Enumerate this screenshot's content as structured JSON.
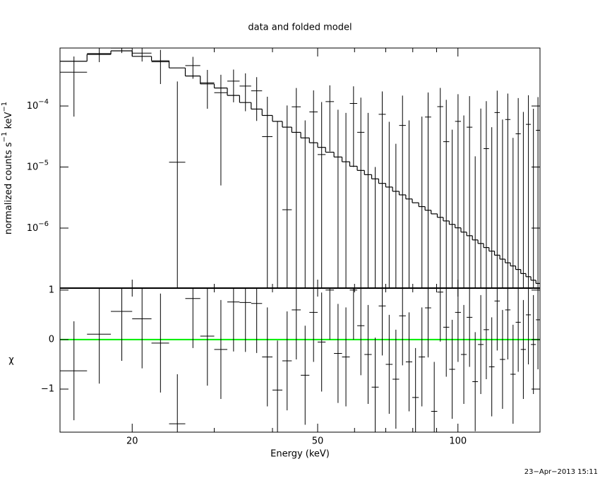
{
  "chart_data": {
    "type": "spectrum",
    "title": "data and folded model",
    "xlabel": "Energy (keV)",
    "timestamp": "23−Apr−2013 15:11",
    "log_x": true,
    "xlim": [
      14,
      150
    ],
    "xticks": [
      20,
      50,
      100
    ],
    "xminor": [
      30,
      40,
      60,
      70,
      80,
      90
    ],
    "bins": [
      14,
      16,
      18,
      20,
      22,
      24,
      26,
      28,
      30,
      32,
      34,
      36,
      38,
      40,
      42,
      44,
      46,
      48,
      50,
      52,
      54.2,
      56.4,
      58.6,
      60.8,
      63,
      65.3,
      67.6,
      70,
      72.4,
      74.8,
      77.3,
      79.8,
      82.4,
      85,
      87.6,
      90.3,
      93,
      95.8,
      98.6,
      101.5,
      104.4,
      107.4,
      110.4,
      113.5,
      116.6,
      119.8,
      123,
      126.3,
      129.6,
      133,
      136.4,
      139.9,
      143.4,
      147,
      150
    ],
    "top_ylabel": [
      {
        "text": "normalized counts s"
      },
      {
        "sup": "−1"
      },
      {
        "text": " keV"
      },
      {
        "sup": "−1"
      }
    ],
    "top_log_y": true,
    "top_ylim": [
      1.04e-07,
      0.00089
    ],
    "top_yticks": [
      {
        "value": 0.0001,
        "label": "10",
        "sup": "−4"
      },
      {
        "value": 1e-05,
        "label": "10",
        "sup": "−5"
      },
      {
        "value": 1e-06,
        "label": "10",
        "sup": "−6"
      }
    ],
    "data_color": "#000000",
    "data_values": [
      0.000357,
      0.000722,
      0.000886,
      0.000734,
      0.000529,
      1.2e-05,
      0.000459,
      0.00024,
      0.000165,
      0.000255,
      0.000212,
      0.000177,
      3.15e-05,
      -4.4e-05,
      2e-06,
      9.7e-05,
      -4.2e-05,
      8e-05,
      1.6e-05,
      0.000118,
      -1.3e-05,
      -2.3e-05,
      0.00011,
      3.7e-05,
      -2.3e-05,
      -9e-05,
      7.3e-05,
      -4.5e-05,
      -7.6e-05,
      4.8e-05,
      -4.2e-05,
      -0.000114,
      -3.3e-05,
      6.6e-05,
      -0.000143,
      9.75e-05,
      2.6e-05,
      -5.9e-05,
      5.6e-05,
      -3e-05,
      4.5e-05,
      -8.5e-05,
      -9.4e-06,
      2e-05,
      -5.5e-05,
      7.8e-05,
      -4e-05,
      6e-05,
      -7e-05,
      3.5e-05,
      -2e-05,
      5e-05,
      -1e-05,
      4e-05
    ],
    "data_errors": [
      0.00029,
      0.0002,
      0.00015,
      0.0002,
      0.0003,
      0.00024,
      0.00018,
      0.00015,
      0.00016,
      0.00014,
      0.00013,
      0.00012,
      0.00011,
      0.0001,
      0.0001,
      0.0001,
      0.0001,
      0.0001,
      0.0001,
      0.0001,
      0.0001,
      0.0001,
      0.0001,
      0.0001,
      0.0001,
      0.0001,
      0.0001,
      0.0001,
      0.0001,
      0.0001,
      0.0001,
      0.0001,
      0.0001,
      0.0001,
      0.0001,
      0.0001,
      0.0001,
      0.0001,
      0.0001,
      0.0001,
      0.0001,
      0.0001,
      0.0001,
      0.0001,
      0.0001,
      0.0001,
      0.0001,
      0.0001,
      0.0001,
      0.0001,
      0.0001,
      0.0001,
      0.0001,
      0.0001
    ],
    "model_color": "#000000",
    "model_values": [
      0.00054,
      0.0007,
      0.0008,
      0.00065,
      0.00055,
      0.00042,
      0.00031,
      0.00023,
      0.000197,
      0.000149,
      0.000114,
      8.9e-05,
      7e-05,
      5.6e-05,
      4.5e-05,
      3.7e-05,
      3e-05,
      2.5e-05,
      2.1e-05,
      1.75e-05,
      1.46e-05,
      1.22e-05,
      1.03e-05,
      8.8e-06,
      7.5e-06,
      6.4e-06,
      5.4e-06,
      4.7e-06,
      4e-06,
      3.5e-06,
      3e-06,
      2.6e-06,
      2.25e-06,
      1.96e-06,
      1.71e-06,
      1.5e-06,
      1.31e-06,
      1.15e-06,
      1.01e-06,
      8.6e-07,
      7.5e-07,
      6.4e-07,
      5.6e-07,
      4.8e-07,
      4.2e-07,
      3.6e-07,
      3.1e-07,
      2.7e-07,
      2.4e-07,
      2.1e-07,
      1.8e-07,
      1.6e-07,
      1.4e-07,
      1.24e-07
    ],
    "bottom_ylabel": "χ",
    "bottom_ylim": [
      -1.87,
      1.04
    ],
    "bottom_yticks": [
      1,
      0,
      {
        "value": -1,
        "label": "−1"
      }
    ],
    "residuals": [
      -0.63,
      0.11,
      0.57,
      0.42,
      -0.07,
      -1.7,
      0.83,
      0.07,
      -0.2,
      0.76,
      0.75,
      0.73,
      -0.35,
      -1.02,
      -0.43,
      0.6,
      -0.72,
      0.55,
      -0.05,
      1.0,
      -0.28,
      -0.35,
      1.0,
      0.28,
      -0.3,
      -0.96,
      0.68,
      -0.5,
      -0.8,
      0.48,
      -0.45,
      -1.17,
      -0.35,
      0.64,
      -1.45,
      0.96,
      0.25,
      -0.6,
      0.55,
      -0.3,
      0.45,
      -0.85,
      -0.1,
      0.2,
      -0.55,
      0.78,
      -0.4,
      0.6,
      -0.7,
      0.35,
      -0.2,
      0.5,
      -0.1,
      0.4
    ],
    "residual_error": 1,
    "reference_line": {
      "value": 0,
      "color": "#00ee00"
    }
  }
}
